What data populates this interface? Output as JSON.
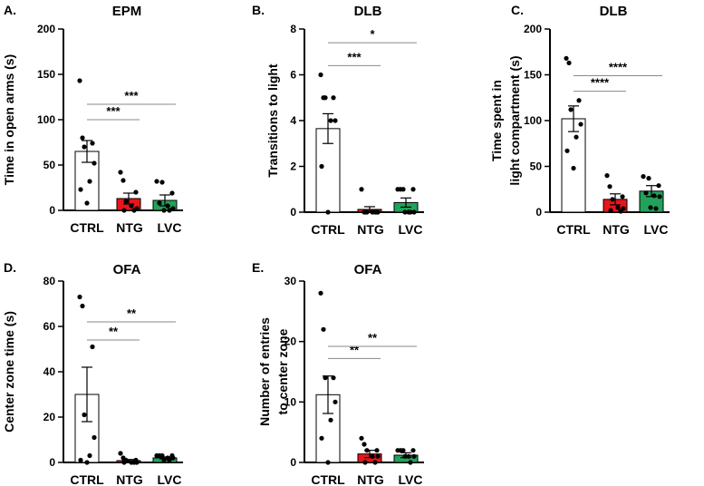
{
  "colors": {
    "CTRL": "#ffffff",
    "NTG": "#e8151b",
    "LVC": "#22a25a",
    "axis": "#000000",
    "sig_line": "#888888"
  },
  "chart_data": [
    {
      "id": "A",
      "type": "bar",
      "panel": "A.",
      "title": "EPM",
      "ylabel": [
        "Time in open arms (s)"
      ],
      "categories": [
        "CTRL",
        "NTG",
        "LVC"
      ],
      "values": [
        65,
        13,
        11
      ],
      "sem": [
        12,
        6,
        6
      ],
      "ylim": [
        0,
        200
      ],
      "yticks": [
        0,
        50,
        100,
        150,
        200
      ],
      "points": [
        [
          143,
          80,
          74,
          70,
          52,
          32,
          23,
          8
        ],
        [
          42,
          33,
          20,
          10,
          5,
          2,
          0,
          0
        ],
        [
          32,
          31,
          19,
          8,
          5,
          2,
          0,
          0
        ]
      ],
      "significance": [
        {
          "from": 0,
          "to": 1,
          "label": "***",
          "y": 100
        },
        {
          "from": 0,
          "to": 2,
          "label": "***",
          "y": 117
        }
      ]
    },
    {
      "id": "B",
      "type": "bar",
      "panel": "B.",
      "title": "DLB",
      "ylabel": [
        "Transitions to light"
      ],
      "categories": [
        "CTRL",
        "NTG",
        "LVC"
      ],
      "values": [
        3.65,
        0.12,
        0.42
      ],
      "sem": [
        0.65,
        0.12,
        0.2
      ],
      "ylim": [
        0,
        8
      ],
      "yticks": [
        0,
        2,
        4,
        6,
        8
      ],
      "points": [
        [
          6,
          5,
          5,
          5,
          4,
          4,
          2,
          0
        ],
        [
          1,
          0,
          0,
          0,
          0,
          0,
          0,
          0
        ],
        [
          1,
          1,
          1,
          1,
          0,
          0,
          0,
          0
        ]
      ],
      "significance": [
        {
          "from": 0,
          "to": 1,
          "label": "***",
          "y": 6.4
        },
        {
          "from": 0,
          "to": 2,
          "label": "*",
          "y": 7.4
        }
      ]
    },
    {
      "id": "C",
      "type": "bar",
      "panel": "C.",
      "title": "DLB",
      "ylabel": [
        "Time spent in",
        "light compartment (s)"
      ],
      "categories": [
        "CTRL",
        "NTG",
        "LVC"
      ],
      "values": [
        102,
        14,
        23
      ],
      "sem": [
        14,
        6,
        6
      ],
      "ylim": [
        0,
        200
      ],
      "yticks": [
        0,
        50,
        100,
        150,
        200
      ],
      "points": [
        [
          168,
          163,
          122,
          112,
          96,
          82,
          67,
          48
        ],
        [
          40,
          28,
          17,
          14,
          5,
          4,
          2,
          1
        ],
        [
          39,
          37,
          29,
          21,
          18,
          17,
          5,
          4
        ]
      ],
      "significance": [
        {
          "from": 0,
          "to": 1,
          "label": "****",
          "y": 132
        },
        {
          "from": 0,
          "to": 2,
          "label": "****",
          "y": 149
        }
      ]
    },
    {
      "id": "D",
      "type": "bar",
      "panel": "D.",
      "title": "OFA",
      "ylabel": [
        "Center zone time (s)"
      ],
      "categories": [
        "CTRL",
        "NTG",
        "LVC"
      ],
      "values": [
        30,
        0.8,
        2
      ],
      "sem": [
        12,
        0.5,
        0.4
      ],
      "ylim": [
        0,
        80
      ],
      "yticks": [
        0,
        20,
        40,
        60,
        80
      ],
      "points": [
        [
          73,
          69,
          51,
          21,
          11,
          3,
          1,
          0
        ],
        [
          4,
          2,
          1,
          1,
          0,
          0,
          0,
          0
        ],
        [
          3,
          3,
          3,
          3,
          2,
          2,
          1,
          1
        ]
      ],
      "significance": [
        {
          "from": 0,
          "to": 1,
          "label": "**",
          "y": 54
        },
        {
          "from": 0,
          "to": 2,
          "label": "**",
          "y": 62
        }
      ]
    },
    {
      "id": "E",
      "type": "bar",
      "panel": "E.",
      "title": "OFA",
      "ylabel": [
        "Number of entries",
        "to center zone"
      ],
      "categories": [
        "CTRL",
        "NTG",
        "LVC"
      ],
      "values": [
        11.2,
        1.4,
        1.2
      ],
      "sem": [
        3.1,
        0.6,
        0.4
      ],
      "ylim": [
        0,
        30
      ],
      "yticks": [
        0,
        10,
        20,
        30
      ],
      "points": [
        [
          28,
          22,
          14,
          14,
          10,
          7,
          4,
          0
        ],
        [
          4,
          3,
          2,
          2,
          1,
          1,
          0,
          0
        ],
        [
          2,
          2,
          2,
          2,
          1,
          1,
          1,
          0
        ]
      ],
      "significance": [
        {
          "from": 0,
          "to": 1,
          "label": "**",
          "y": 17.2
        },
        {
          "from": 0,
          "to": 2,
          "label": "**",
          "y": 19.2
        }
      ]
    }
  ]
}
